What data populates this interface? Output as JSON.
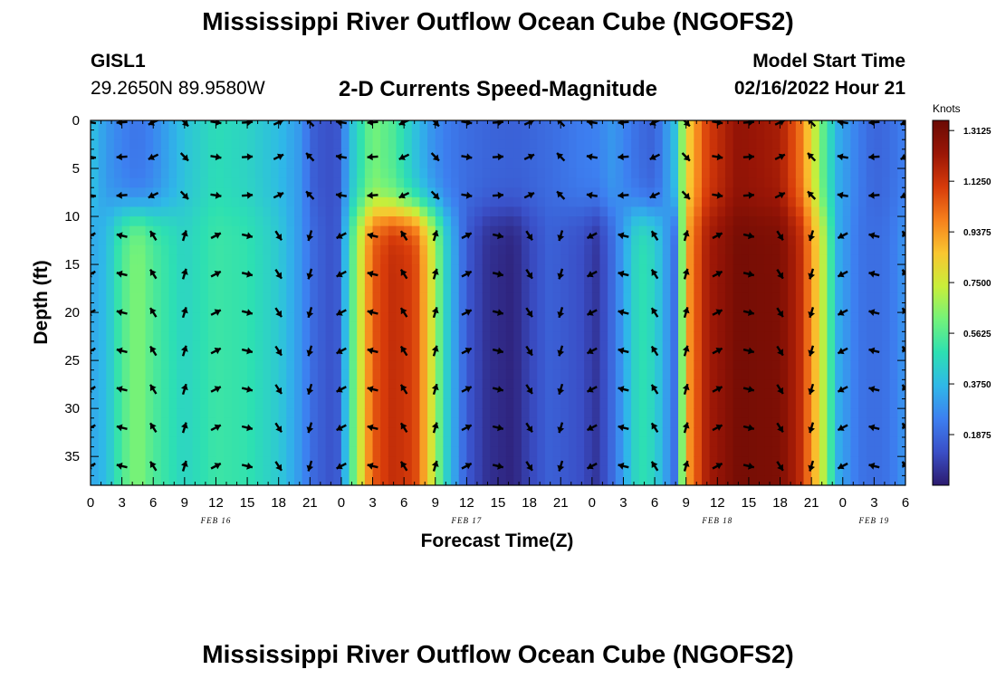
{
  "header": {
    "title": "Mississippi River Outflow Ocean Cube (NGOFS2)",
    "station_id": "GISL1",
    "station_coords": "29.2650N  89.9580W",
    "chart_title": "2-D Currents Speed-Magnitude",
    "model_start_label": "Model Start Time",
    "model_start_value": "02/16/2022 Hour 21"
  },
  "footer": {
    "title": "Mississippi River Outflow Ocean Cube (NGOFS2)"
  },
  "colors": {
    "palette": [
      "#2c1b6e",
      "#3a4fc7",
      "#3d7ff0",
      "#2fb8e8",
      "#2de0b2",
      "#73f27a",
      "#c8ee3a",
      "#f9c630",
      "#f6801c",
      "#d73b0a",
      "#9a1606",
      "#6a0a04"
    ]
  },
  "chart_data": {
    "type": "heatmap",
    "title": "2-D Currents Speed-Magnitude",
    "xlabel": "Forecast Time(Z)",
    "ylabel": "Depth (ft)",
    "colorbar_label": "Knots",
    "colorbar_ticks": [
      "1.3125",
      "1.1250",
      "0.9375",
      "0.7500",
      "0.5625",
      "0.3750",
      "0.1875"
    ],
    "colorbar_tick_values": [
      1.3125,
      1.125,
      0.9375,
      0.75,
      0.5625,
      0.375,
      0.1875
    ],
    "value_range": [
      0,
      1.35
    ],
    "x_range_hours": [
      0,
      78
    ],
    "x_tick_hours": [
      0,
      3,
      6,
      9,
      12,
      15,
      18,
      21,
      24,
      27,
      30,
      33,
      36,
      39,
      42,
      45,
      48,
      51,
      54,
      57,
      60,
      63,
      66,
      69,
      72,
      75,
      78
    ],
    "x_tick_labels": [
      "0",
      "3",
      "6",
      "9",
      "12",
      "15",
      "18",
      "21",
      "0",
      "3",
      "6",
      "9",
      "12",
      "15",
      "18",
      "21",
      "0",
      "3",
      "6",
      "9",
      "12",
      "15",
      "18",
      "21",
      "0",
      "3",
      "6"
    ],
    "date_labels": [
      {
        "text": "FEB 16",
        "hour": 12
      },
      {
        "text": "FEB 17",
        "hour": 36
      },
      {
        "text": "FEB 18",
        "hour": 60
      },
      {
        "text": "FEB 19",
        "hour": 75
      }
    ],
    "y_range": [
      0,
      38
    ],
    "y_ticks": [
      0,
      5,
      10,
      15,
      20,
      25,
      30,
      35
    ],
    "depth_levels": [
      0.2,
      3.8,
      7.8,
      12,
      16,
      20,
      24,
      28,
      32,
      36
    ],
    "arrow_hours": [
      0,
      3,
      6,
      9,
      12,
      15,
      18,
      21,
      24,
      27,
      30,
      33,
      36,
      39,
      42,
      45,
      48,
      51,
      54,
      57,
      60,
      63,
      66,
      69,
      72,
      75,
      78
    ],
    "time_speed": {
      "hours": [
        0,
        1.5,
        3,
        4.5,
        6,
        9,
        12,
        15,
        18,
        20,
        21.5,
        23.5,
        25,
        27,
        29,
        31,
        32.5,
        34,
        36,
        38,
        40.5,
        42,
        44,
        47,
        48.5,
        50,
        52.5,
        54,
        56,
        57,
        59,
        62,
        66,
        68,
        70,
        71.5,
        73.5,
        75,
        76.5,
        78
      ],
      "surface": [
        0.4,
        0.3,
        0.25,
        0.22,
        0.26,
        0.4,
        0.48,
        0.45,
        0.38,
        0.3,
        0.15,
        0.12,
        0.4,
        0.62,
        0.55,
        0.4,
        0.3,
        0.24,
        0.2,
        0.18,
        0.17,
        0.18,
        0.2,
        0.24,
        0.25,
        0.3,
        0.2,
        0.17,
        0.4,
        0.8,
        1.1,
        1.25,
        1.2,
        1.0,
        0.6,
        0.35,
        0.24,
        0.18,
        0.2,
        0.25
      ],
      "deep": [
        0.33,
        0.38,
        0.55,
        0.64,
        0.55,
        0.45,
        0.52,
        0.5,
        0.42,
        0.3,
        0.18,
        0.12,
        0.55,
        1.05,
        1.15,
        1.1,
        0.8,
        0.45,
        0.15,
        0.05,
        0.02,
        0.1,
        0.17,
        0.12,
        0.06,
        0.2,
        0.5,
        0.45,
        0.2,
        0.9,
        1.2,
        1.32,
        1.3,
        1.15,
        0.75,
        0.35,
        0.22,
        0.2,
        0.22,
        0.3
      ]
    }
  }
}
